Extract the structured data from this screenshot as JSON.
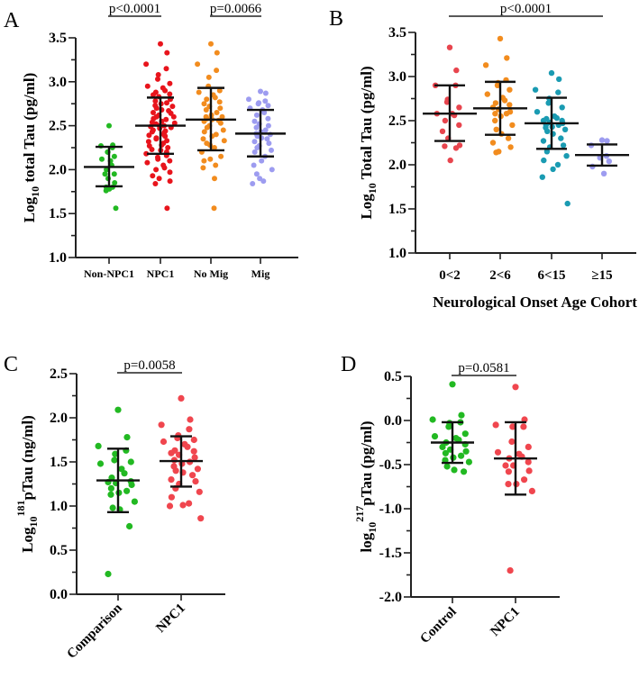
{
  "chart_data": [
    {
      "panel": "A",
      "type": "scatter",
      "ylabel": {
        "pre": "Log",
        "sub": "10",
        "sup": "",
        "post": " total Tau (pg/ml)"
      },
      "xlabel": "",
      "ylim": [
        1.0,
        3.5
      ],
      "yticks": [
        "1.0",
        "1.5",
        "2.0",
        "2.5",
        "3.0",
        "3.5"
      ],
      "categories": [
        "Non-NPC1",
        "NPC1",
        "No Mig",
        "Mig"
      ],
      "colors": [
        "#22b922",
        "#e8141c",
        "#f28c1e",
        "#9d9cf0"
      ],
      "groups": [
        {
          "mean": 2.03,
          "sd_low": 1.81,
          "sd_high": 2.26,
          "values": [
            2.5,
            2.28,
            2.27,
            2.25,
            2.2,
            2.2,
            2.15,
            2.12,
            2.1,
            2.05,
            2.0,
            1.95,
            1.95,
            1.9,
            1.85,
            1.8,
            1.8,
            1.78,
            1.76,
            1.56
          ]
        },
        {
          "mean": 2.5,
          "sd_low": 2.18,
          "sd_high": 2.82,
          "values": [
            3.43,
            3.33,
            3.2,
            3.15,
            3.08,
            3.03,
            2.98,
            2.95,
            2.93,
            2.9,
            2.88,
            2.86,
            2.85,
            2.83,
            2.8,
            2.78,
            2.76,
            2.75,
            2.73,
            2.72,
            2.7,
            2.68,
            2.67,
            2.65,
            2.64,
            2.62,
            2.6,
            2.6,
            2.58,
            2.57,
            2.55,
            2.54,
            2.53,
            2.52,
            2.5,
            2.5,
            2.49,
            2.48,
            2.47,
            2.45,
            2.44,
            2.43,
            2.42,
            2.4,
            2.39,
            2.38,
            2.36,
            2.35,
            2.33,
            2.32,
            2.3,
            2.28,
            2.27,
            2.25,
            2.23,
            2.22,
            2.2,
            2.18,
            2.16,
            2.14,
            2.12,
            2.1,
            2.08,
            2.05,
            2.02,
            2.0,
            1.97,
            1.93,
            1.9,
            1.87,
            1.84,
            1.56
          ]
        },
        {
          "mean": 2.57,
          "sd_low": 2.22,
          "sd_high": 2.93,
          "values": [
            3.43,
            3.33,
            3.2,
            3.13,
            3.05,
            2.95,
            2.9,
            2.88,
            2.85,
            2.82,
            2.8,
            2.77,
            2.75,
            2.72,
            2.7,
            2.68,
            2.65,
            2.62,
            2.6,
            2.6,
            2.58,
            2.57,
            2.56,
            2.55,
            2.53,
            2.5,
            2.48,
            2.45,
            2.43,
            2.4,
            2.38,
            2.35,
            2.33,
            2.3,
            2.28,
            2.25,
            2.2,
            2.15,
            2.12,
            2.1,
            2.05,
            2.02,
            1.9,
            1.56
          ]
        },
        {
          "mean": 2.41,
          "sd_low": 2.15,
          "sd_high": 2.68,
          "values": [
            2.89,
            2.87,
            2.8,
            2.78,
            2.76,
            2.75,
            2.73,
            2.7,
            2.68,
            2.65,
            2.62,
            2.58,
            2.55,
            2.52,
            2.5,
            2.48,
            2.45,
            2.43,
            2.41,
            2.4,
            2.38,
            2.36,
            2.35,
            2.32,
            2.3,
            2.27,
            2.25,
            2.22,
            2.2,
            2.15,
            2.1,
            2.05,
            2.0,
            1.95,
            1.9,
            1.87,
            1.84
          ]
        }
      ],
      "comparisons": [
        {
          "from": 0,
          "to": 1,
          "label": "p<0.0001"
        },
        {
          "from": 2,
          "to": 3,
          "label": "p=0.0066"
        }
      ]
    },
    {
      "panel": "B",
      "type": "scatter",
      "ylabel": {
        "pre": "Log",
        "sub": "10",
        "sup": "",
        "post": " Total Tau (pg/ml)"
      },
      "xlabel": "Neurological Onset Age Cohort",
      "ylim": [
        1.0,
        3.5
      ],
      "yticks": [
        "1.0",
        "1.5",
        "2.0",
        "2.5",
        "3.0",
        "3.5"
      ],
      "categories": [
        "0<2",
        "2<6",
        "6<15",
        "≥15"
      ],
      "colors": [
        "#e8454e",
        "#f28c1e",
        "#1a9bb2",
        "#9d9cf0"
      ],
      "groups": [
        {
          "mean": 2.58,
          "sd_low": 2.27,
          "sd_high": 2.9,
          "values": [
            3.33,
            3.07,
            2.9,
            2.9,
            2.74,
            2.71,
            2.65,
            2.58,
            2.58,
            2.56,
            2.5,
            2.45,
            2.38,
            2.3,
            2.22,
            2.21,
            2.19,
            2.05
          ]
        },
        {
          "mean": 2.64,
          "sd_low": 2.34,
          "sd_high": 2.94,
          "values": [
            3.43,
            3.21,
            3.13,
            2.96,
            2.93,
            2.9,
            2.85,
            2.8,
            2.76,
            2.73,
            2.7,
            2.68,
            2.65,
            2.63,
            2.6,
            2.58,
            2.58,
            2.55,
            2.5,
            2.45,
            2.4,
            2.35,
            2.3,
            2.25,
            2.2,
            2.15,
            2.14
          ]
        },
        {
          "mean": 2.47,
          "sd_low": 2.18,
          "sd_high": 2.76,
          "values": [
            3.04,
            2.97,
            2.85,
            2.82,
            2.75,
            2.7,
            2.65,
            2.6,
            2.55,
            2.53,
            2.52,
            2.5,
            2.5,
            2.48,
            2.47,
            2.45,
            2.45,
            2.43,
            2.42,
            2.4,
            2.38,
            2.35,
            2.3,
            2.27,
            2.22,
            2.2,
            2.15,
            2.1,
            2.05,
            2.0,
            1.95,
            1.86,
            1.56
          ]
        },
        {
          "mean": 2.11,
          "sd_low": 1.99,
          "sd_high": 2.23,
          "values": [
            2.28,
            2.27,
            2.22,
            2.1,
            2.09,
            2.08,
            2.04,
            1.98,
            1.9
          ]
        }
      ],
      "comparisons": [
        {
          "from": 0,
          "to": 3,
          "label": "p<0.0001"
        }
      ]
    },
    {
      "panel": "C",
      "type": "scatter",
      "ylabel": {
        "pre": "Log",
        "sub": "10",
        "sup": "181",
        "post": "pTau (ng/ml)"
      },
      "xlabel": "",
      "ylim": [
        0.0,
        2.5
      ],
      "yticks": [
        "0.0",
        "0.5",
        "1.0",
        "1.5",
        "2.0",
        "2.5"
      ],
      "categories": [
        "Comparison",
        "NPC1"
      ],
      "colors": [
        "#22b922",
        "#f0464e"
      ],
      "groups": [
        {
          "mean": 1.29,
          "sd_low": 0.93,
          "sd_high": 1.65,
          "values": [
            2.09,
            1.78,
            1.68,
            1.63,
            1.59,
            1.52,
            1.5,
            1.48,
            1.42,
            1.37,
            1.32,
            1.28,
            1.27,
            1.26,
            1.24,
            1.2,
            1.17,
            1.15,
            1.13,
            1.05,
            0.98,
            0.96,
            0.77,
            0.23
          ]
        },
        {
          "mean": 1.51,
          "sd_low": 1.22,
          "sd_high": 1.79,
          "values": [
            2.22,
            1.98,
            1.92,
            1.87,
            1.8,
            1.77,
            1.75,
            1.73,
            1.7,
            1.67,
            1.63,
            1.62,
            1.6,
            1.58,
            1.55,
            1.52,
            1.5,
            1.48,
            1.45,
            1.42,
            1.4,
            1.38,
            1.35,
            1.3,
            1.28,
            1.25,
            1.2,
            1.16,
            1.1,
            1.03,
            1.01,
            1.0,
            0.86
          ]
        }
      ],
      "comparisons": [
        {
          "from": 0,
          "to": 1,
          "label": "p=0.0058"
        }
      ]
    },
    {
      "panel": "D",
      "type": "scatter",
      "ylabel": {
        "pre": "log",
        "sub": "10",
        "sup": "217",
        "post": "pTau (pg/ml)"
      },
      "xlabel": "",
      "ylim": [
        -2.0,
        0.5
      ],
      "yticks": [
        "-2.0",
        "-1.5",
        "-1.0",
        "-0.5",
        "0.0",
        "0.5"
      ],
      "categories": [
        "Control",
        "NPC1"
      ],
      "colors": [
        "#22b922",
        "#f0464e"
      ],
      "groups": [
        {
          "mean": -0.25,
          "sd_low": -0.48,
          "sd_high": -0.02,
          "values": [
            0.41,
            0.06,
            0.01,
            -0.02,
            -0.03,
            -0.07,
            -0.15,
            -0.18,
            -0.2,
            -0.22,
            -0.25,
            -0.27,
            -0.3,
            -0.33,
            -0.35,
            -0.37,
            -0.4,
            -0.42,
            -0.45,
            -0.47,
            -0.52,
            -0.56,
            -0.58
          ]
        },
        {
          "mean": -0.43,
          "sd_low": -0.84,
          "sd_high": -0.02,
          "values": [
            0.38,
            0.01,
            -0.05,
            -0.07,
            -0.07,
            -0.24,
            -0.3,
            -0.36,
            -0.38,
            -0.41,
            -0.43,
            -0.47,
            -0.51,
            -0.51,
            -0.57,
            -0.58,
            -0.67,
            -0.72,
            -0.72,
            -0.8,
            -1.7
          ]
        }
      ],
      "comparisons": [
        {
          "from": 0,
          "to": 1,
          "label": "p=0.0581"
        }
      ]
    }
  ]
}
